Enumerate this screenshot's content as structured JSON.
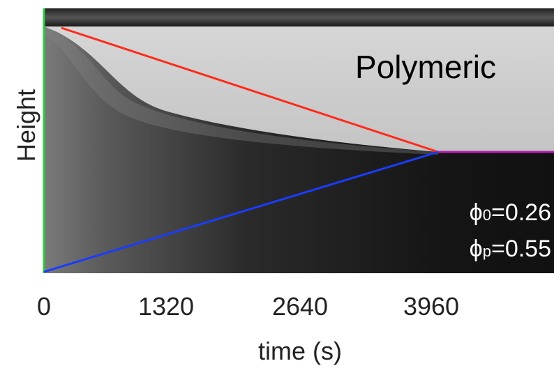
{
  "plot": {
    "y_label": "Height",
    "x_label": "time (s)",
    "x_tick_labels": [
      "0",
      "1320",
      "2640",
      "3960"
    ],
    "title": "Polymeric",
    "annotations": [
      {
        "symbol": "ϕ",
        "subscript": "0",
        "text": "=0.26"
      },
      {
        "symbol": "ϕ",
        "subscript": "p",
        "text": "=0.55"
      }
    ]
  }
}
